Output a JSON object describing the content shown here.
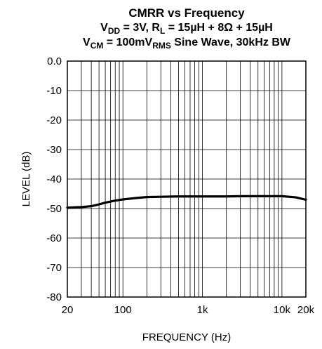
{
  "chart_data": {
    "type": "line",
    "title_lines": [
      [
        {
          "text": "CMRR vs Frequency"
        }
      ],
      [
        {
          "text": "V"
        },
        {
          "text": "DD",
          "sub": true
        },
        {
          "text": " = 3V, R"
        },
        {
          "text": "L",
          "sub": true
        },
        {
          "text": " = 15µH + 8Ω + 15µH"
        }
      ],
      [
        {
          "text": "V"
        },
        {
          "text": "CM",
          "sub": true
        },
        {
          "text": " = 100mV"
        },
        {
          "text": "RMS",
          "sub": true
        },
        {
          "text": " Sine Wave, 30kHz BW"
        }
      ]
    ],
    "xlabel": "FREQUENCY (Hz)",
    "ylabel": "LEVEL (dB)",
    "x_scale": "log",
    "xlim": [
      20,
      20000
    ],
    "ylim": [
      -80,
      0
    ],
    "x_ticks": [
      {
        "value": 20,
        "label": "20"
      },
      {
        "value": 100,
        "label": "100"
      },
      {
        "value": 1000,
        "label": "1k"
      },
      {
        "value": 10000,
        "label": "10k"
      },
      {
        "value": 20000,
        "label": "20k"
      }
    ],
    "y_ticks": [
      {
        "value": 0,
        "label": "0.0"
      },
      {
        "value": -10,
        "label": "-10"
      },
      {
        "value": -20,
        "label": "-20"
      },
      {
        "value": -30,
        "label": "-30"
      },
      {
        "value": -40,
        "label": "-40"
      },
      {
        "value": -50,
        "label": "-50"
      },
      {
        "value": -60,
        "label": "-60"
      },
      {
        "value": -70,
        "label": "-70"
      },
      {
        "value": -80,
        "label": "-80"
      }
    ],
    "x_grid": [
      20,
      30,
      40,
      50,
      60,
      70,
      80,
      90,
      100,
      200,
      300,
      400,
      500,
      600,
      700,
      800,
      900,
      1000,
      2000,
      3000,
      4000,
      5000,
      6000,
      7000,
      8000,
      9000,
      10000,
      20000
    ],
    "grid": true,
    "series": [
      {
        "color": "#000000",
        "x": [
          20,
          30,
          40,
          50,
          60,
          80,
          100,
          150,
          200,
          300,
          500,
          1000,
          2000,
          3000,
          5000,
          10000,
          15000,
          20000
        ],
        "y": [
          -49.7,
          -49.5,
          -49.2,
          -48.6,
          -48.0,
          -47.3,
          -46.9,
          -46.4,
          -46.1,
          -46.0,
          -45.9,
          -45.9,
          -45.9,
          -45.8,
          -45.8,
          -45.8,
          -46.2,
          -47.0
        ]
      }
    ]
  }
}
